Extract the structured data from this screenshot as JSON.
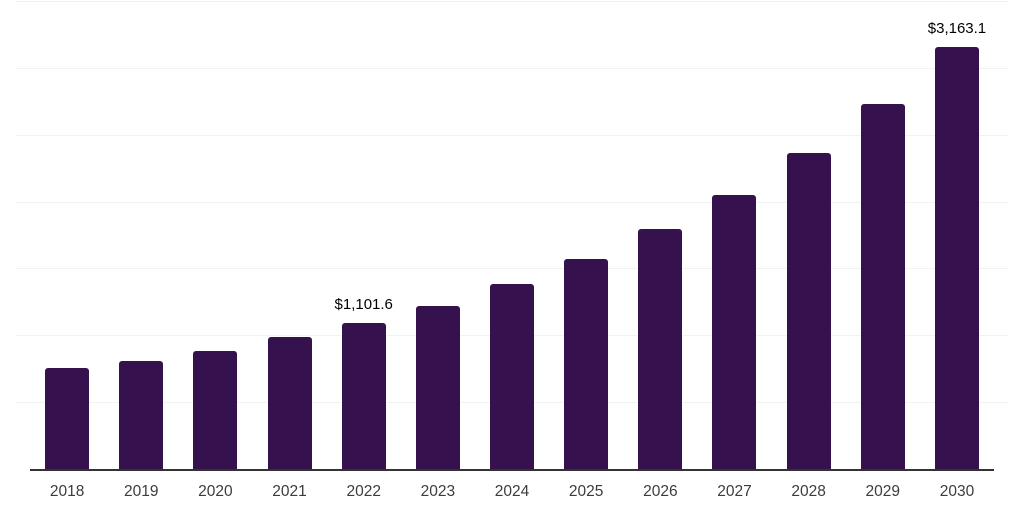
{
  "chart_data": {
    "type": "bar",
    "title": "",
    "xlabel": "",
    "ylabel": "",
    "categories": [
      "2018",
      "2019",
      "2020",
      "2021",
      "2022",
      "2023",
      "2024",
      "2025",
      "2026",
      "2027",
      "2028",
      "2029",
      "2030"
    ],
    "values": [
      760,
      815,
      888,
      993,
      1101.6,
      1230,
      1390,
      1575,
      1800,
      2060,
      2370,
      2740,
      3163.1
    ],
    "data_labels": [
      "",
      "",
      "",
      "",
      "$1,101.6",
      "",
      "",
      "",
      "",
      "",
      "",
      "",
      "$3,163.1"
    ],
    "ylim": [
      0,
      3500
    ],
    "grid_step": 500,
    "grid": true,
    "legend_position": "none",
    "colors": {
      "bar": "#35114D",
      "axis_line": "#333333",
      "gridline": "#F2F2F2",
      "tick_label": "#3C3C3C",
      "data_label": "#000000",
      "background": "#FFFFFF"
    }
  }
}
